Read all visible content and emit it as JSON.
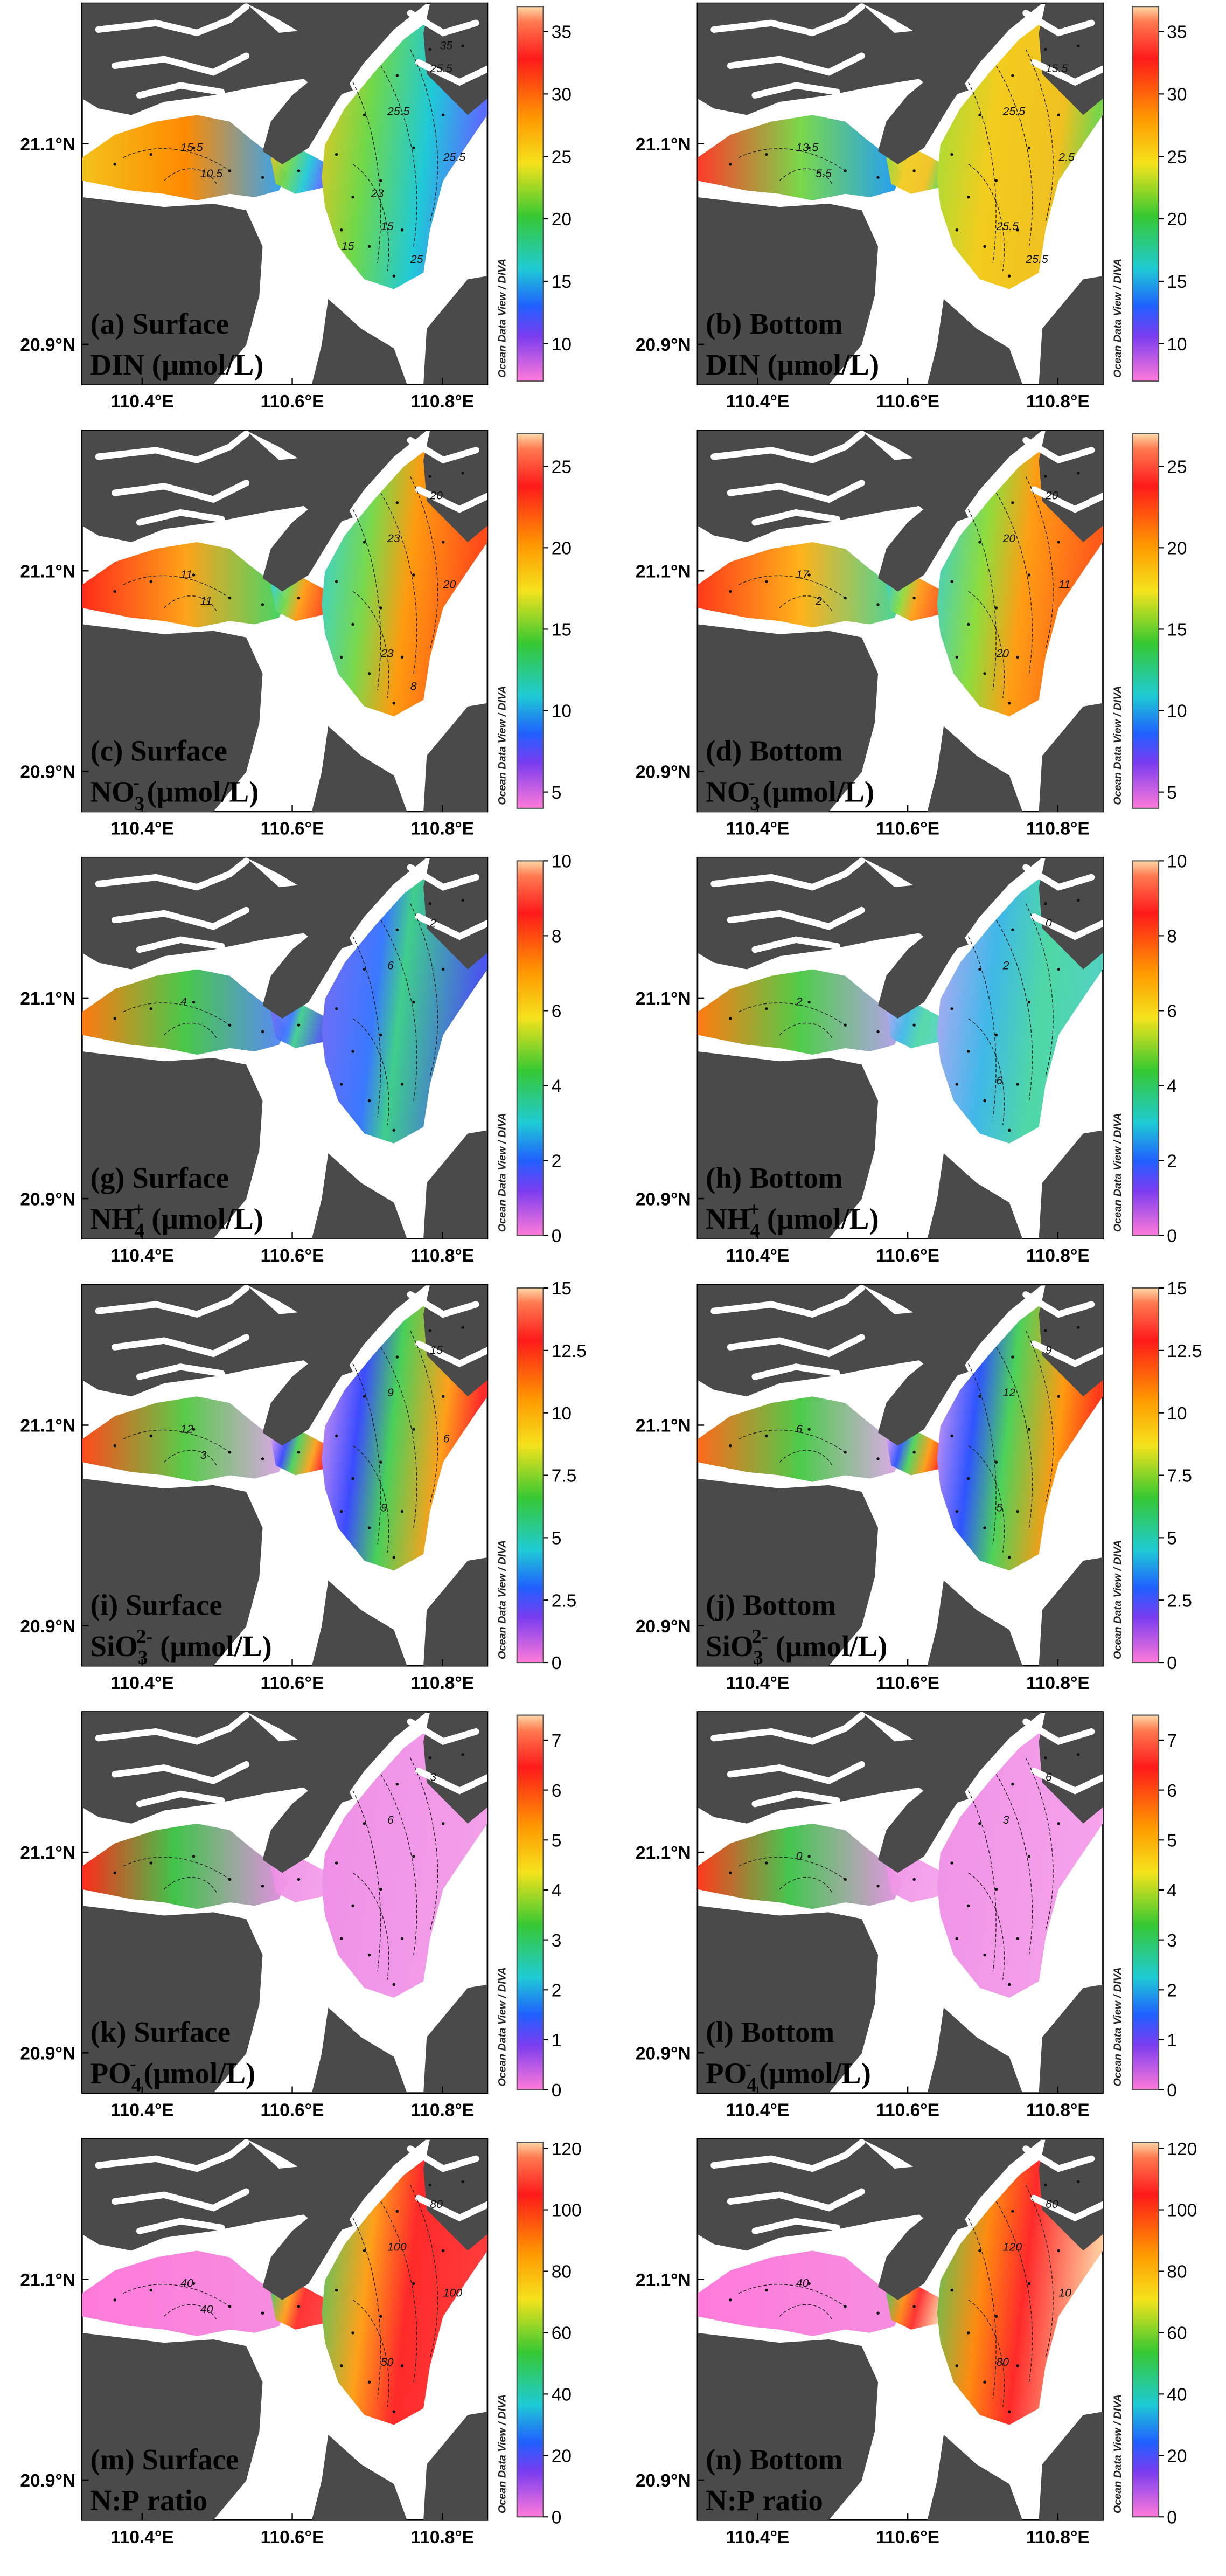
{
  "lon_labels": [
    "110.4°E",
    "110.6°E",
    "110.8°E"
  ],
  "lat_labels": [
    "21.1°N",
    "20.9°N"
  ],
  "colorbar_side_label": "Ocean Data View / DIVA",
  "panels": [
    {
      "id": "a",
      "title": "(a) Surface",
      "label_parts": [
        "DIN",
        " (μmol/L)"
      ],
      "colorbar": [
        "35",
        "30",
        "25",
        "20",
        "15",
        "10"
      ],
      "scale_max": 37,
      "scale_min": 7,
      "contours": [
        "25.5",
        "25.5",
        "15.5",
        "15",
        "25.5",
        "10.5",
        "25",
        "15",
        "23",
        "35"
      ],
      "palette": "din_s"
    },
    {
      "id": "b",
      "title": "(b) Bottom",
      "label_parts": [
        "DIN",
        " (μmol/L)"
      ],
      "colorbar": [
        "35",
        "30",
        "25",
        "20",
        "15",
        "10"
      ],
      "scale_max": 37,
      "scale_min": 7,
      "contours": [
        "25.5",
        "15.5",
        "13.5",
        "25.5",
        "2.5",
        "5.5",
        "25.5"
      ],
      "palette": "din_b"
    },
    {
      "id": "c",
      "title": "(c) Surface",
      "label_parts": [
        "NO",
        "3",
        "-",
        " (μmol/L)"
      ],
      "colorbar": [
        "25",
        "20",
        "15",
        "10",
        "5"
      ],
      "scale_max": 27,
      "scale_min": 4,
      "contours": [
        "23",
        "20",
        "11",
        "23",
        "20",
        "11",
        "8"
      ],
      "palette": "no3_s"
    },
    {
      "id": "d",
      "title": "(d) Bottom",
      "label_parts": [
        "NO",
        "3",
        "-",
        " (μmol/L)"
      ],
      "colorbar": [
        "25",
        "20",
        "15",
        "10",
        "5"
      ],
      "scale_max": 27,
      "scale_min": 4,
      "contours": [
        "20",
        "20",
        "17",
        "20",
        "11",
        "2"
      ],
      "palette": "no3_b"
    },
    {
      "id": "g",
      "title": "(g) Surface",
      "label_parts": [
        "NH",
        "4",
        "+",
        " (μmol/L)"
      ],
      "colorbar": [
        "10",
        "8",
        "6",
        "4",
        "2",
        "0"
      ],
      "scale_max": 10,
      "scale_min": 0,
      "contours": [
        "6",
        "2",
        "4"
      ],
      "palette": "nh4_s"
    },
    {
      "id": "h",
      "title": "(h) Bottom",
      "label_parts": [
        "NH",
        "4",
        "+",
        " (μmol/L)"
      ],
      "colorbar": [
        "10",
        "8",
        "6",
        "4",
        "2",
        "0"
      ],
      "scale_max": 10,
      "scale_min": 0,
      "contours": [
        "2",
        "0",
        "2",
        "6"
      ],
      "palette": "nh4_b"
    },
    {
      "id": "i",
      "title": "(i) Surface",
      "label_parts": [
        "SiO",
        "3",
        "2-",
        " (μmol/L)"
      ],
      "colorbar": [
        "15",
        "12.5",
        "10",
        "7.5",
        "5",
        "2.5",
        "0"
      ],
      "scale_max": 15,
      "scale_min": 0,
      "contours": [
        "9",
        "15",
        "12",
        "9",
        "6",
        "3"
      ],
      "palette": "si_s"
    },
    {
      "id": "j",
      "title": "(j) Bottom",
      "label_parts": [
        "SiO",
        "3",
        "2-",
        " (μmol/L)"
      ],
      "colorbar": [
        "15",
        "12.5",
        "10",
        "7.5",
        "5",
        "2.5",
        "0"
      ],
      "scale_max": 15,
      "scale_min": 0,
      "contours": [
        "12",
        "9",
        "6",
        "5"
      ],
      "palette": "si_b"
    },
    {
      "id": "k",
      "title": "(k) Surface",
      "label_parts": [
        "PO",
        "4",
        "-",
        " (μmol/L)"
      ],
      "colorbar": [
        "7",
        "6",
        "5",
        "4",
        "3",
        "2",
        "1",
        "0"
      ],
      "scale_max": 7.5,
      "scale_min": 0,
      "contours": [
        "6",
        "3"
      ],
      "palette": "po4_s"
    },
    {
      "id": "l",
      "title": "(l) Bottom",
      "label_parts": [
        "PO",
        "4",
        "-",
        " (μmol/L)"
      ],
      "colorbar": [
        "7",
        "6",
        "5",
        "4",
        "3",
        "2",
        "1",
        "0"
      ],
      "scale_max": 7.5,
      "scale_min": 0,
      "contours": [
        "3",
        "6",
        "0"
      ],
      "palette": "po4_b"
    },
    {
      "id": "m",
      "title": "(m) Surface",
      "label_parts": [
        "N:P",
        " ratio"
      ],
      "colorbar": [
        "120",
        "100",
        "80",
        "60",
        "40",
        "20",
        "0"
      ],
      "scale_max": 122,
      "scale_min": 0,
      "contours": [
        "100",
        "80",
        "40",
        "50",
        "100",
        "40"
      ],
      "palette": "np_s"
    },
    {
      "id": "n",
      "title": "(n) Bottom",
      "label_parts": [
        "N:P",
        " ratio"
      ],
      "colorbar": [
        "120",
        "100",
        "80",
        "60",
        "40",
        "20",
        "0"
      ],
      "scale_max": 122,
      "scale_min": 0,
      "contours": [
        "120",
        "60",
        "40",
        "80",
        "10"
      ],
      "palette": "np_b"
    }
  ]
}
